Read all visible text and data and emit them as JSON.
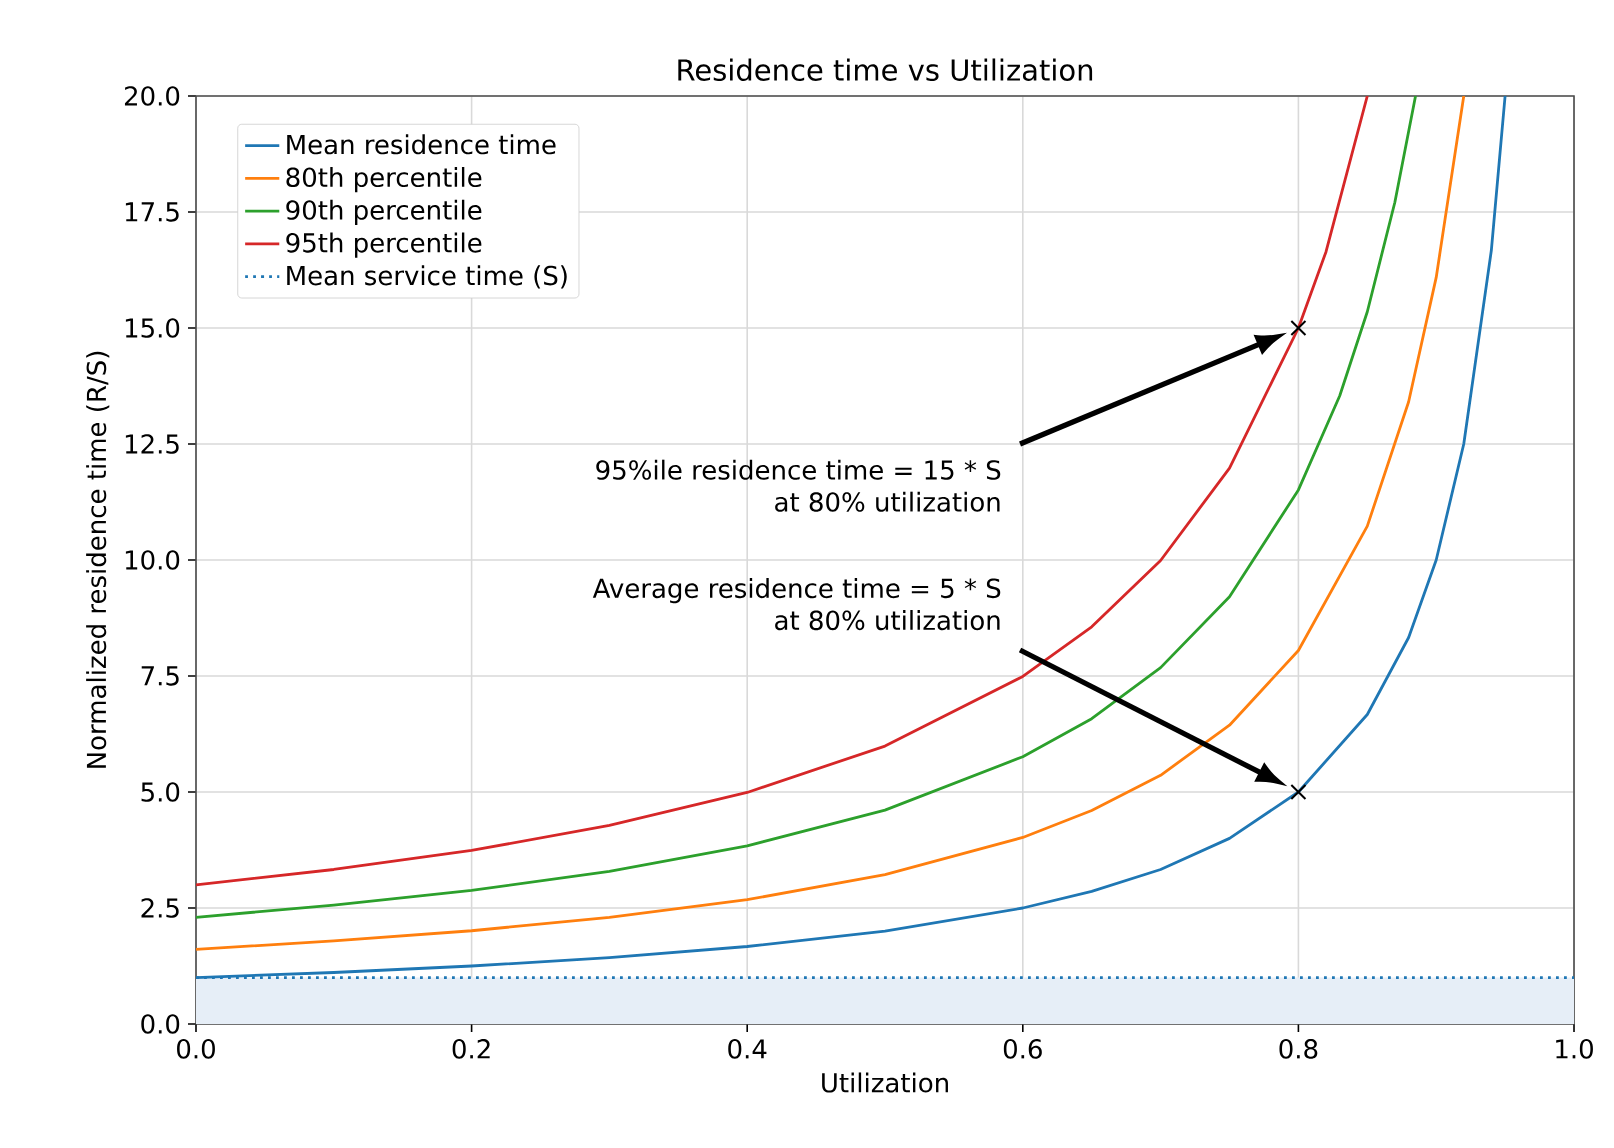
{
  "chart_data": {
    "type": "line",
    "title": "Residence time vs Utilization",
    "xlabel": "Utilization",
    "ylabel": "Normalized residence time (R/S)",
    "xlim": [
      0,
      1
    ],
    "ylim": [
      0,
      20
    ],
    "xticks": [
      {
        "value": 0,
        "label": "0.0"
      },
      {
        "value": 0.2,
        "label": "0.2"
      },
      {
        "value": 0.4,
        "label": "0.4"
      },
      {
        "value": 0.6,
        "label": "0.6"
      },
      {
        "value": 0.8,
        "label": "0.8"
      },
      {
        "value": 1,
        "label": "1.0"
      }
    ],
    "yticks": [
      {
        "value": 0,
        "label": "0.0"
      },
      {
        "value": 2.5,
        "label": "2.5"
      },
      {
        "value": 5,
        "label": "5.0"
      },
      {
        "value": 7.5,
        "label": "7.5"
      },
      {
        "value": 10,
        "label": "10.0"
      },
      {
        "value": 12.5,
        "label": "12.5"
      },
      {
        "value": 15,
        "label": "15.0"
      },
      {
        "value": 17.5,
        "label": "17.5"
      },
      {
        "value": 20,
        "label": "20.0"
      }
    ],
    "grid": true,
    "legend": "top left",
    "marker": "none",
    "line_style": "solid",
    "series": [
      {
        "name": "Mean residence time",
        "color": "#1f77b4",
        "x": [
          0,
          0.1,
          0.2,
          0.3,
          0.4,
          0.5,
          0.6,
          0.65,
          0.7,
          0.75,
          0.8,
          0.85,
          0.88,
          0.9,
          0.92,
          0.94,
          0.95
        ],
        "values": [
          1,
          1.11,
          1.25,
          1.43,
          1.67,
          2,
          2.5,
          2.86,
          3.33,
          4,
          5,
          6.67,
          8.33,
          10,
          12.5,
          16.67,
          20
        ]
      },
      {
        "name": "80th percentile",
        "color": "#ff7f0e",
        "x": [
          0,
          0.1,
          0.2,
          0.3,
          0.4,
          0.5,
          0.6,
          0.65,
          0.7,
          0.75,
          0.8,
          0.85,
          0.88,
          0.9,
          0.92
        ],
        "values": [
          1.61,
          1.79,
          2.01,
          2.3,
          2.68,
          3.22,
          4.02,
          4.6,
          5.36,
          6.44,
          8.05,
          10.73,
          13.41,
          16.09,
          20
        ]
      },
      {
        "name": "90th percentile",
        "color": "#2ca02c",
        "x": [
          0,
          0.1,
          0.2,
          0.3,
          0.4,
          0.5,
          0.6,
          0.65,
          0.7,
          0.75,
          0.8,
          0.83,
          0.85,
          0.87,
          0.885
        ],
        "values": [
          2.3,
          2.56,
          2.88,
          3.29,
          3.84,
          4.61,
          5.76,
          6.58,
          7.68,
          9.21,
          11.51,
          13.54,
          15.35,
          17.71,
          20
        ]
      },
      {
        "name": "95th percentile",
        "color": "#d62728",
        "x": [
          0,
          0.1,
          0.2,
          0.3,
          0.4,
          0.5,
          0.6,
          0.65,
          0.7,
          0.75,
          0.8,
          0.82,
          0.85
        ],
        "values": [
          3,
          3.33,
          3.74,
          4.28,
          4.99,
          5.99,
          7.49,
          8.56,
          9.99,
          11.98,
          15,
          16.64,
          20
        ]
      },
      {
        "name": "Mean service time (S)",
        "color": "#1f77b4",
        "line_style": "dotted",
        "x": [
          0,
          1
        ],
        "values": [
          1,
          1
        ]
      },
      {
        "type": "scatter",
        "color": "#000000",
        "marker": "cross",
        "x": [
          0.8,
          0.8
        ],
        "values": [
          15,
          5
        ]
      }
    ],
    "bands": [
      {
        "axis": "y",
        "from": 0,
        "to": 1,
        "color": "#e6eef7"
      }
    ],
    "annotations": [
      "95%ile residence time = 15 * S at 80% utilization",
      "Average residence time = 5 * S at 80% utilization"
    ]
  }
}
